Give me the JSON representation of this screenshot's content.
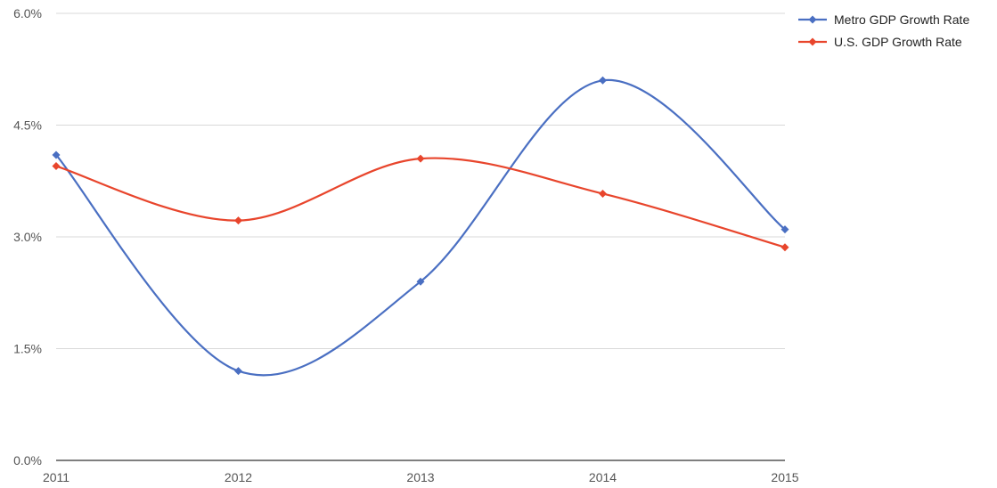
{
  "chart_data": {
    "type": "line",
    "categories": [
      "2011",
      "2012",
      "2013",
      "2014",
      "2015"
    ],
    "series": [
      {
        "name": "Metro GDP Growth Rate",
        "color": "#4a6fc2",
        "values": [
          4.1,
          1.2,
          2.4,
          5.1,
          3.1
        ]
      },
      {
        "name": "U.S. GDP Growth Rate",
        "color": "#e8452c",
        "values": [
          3.95,
          3.22,
          4.05,
          3.58,
          2.86
        ]
      }
    ],
    "yticks": [
      "0.0%",
      "1.5%",
      "3.0%",
      "4.5%",
      "6.0%"
    ],
    "ylim": [
      0,
      6
    ],
    "grid": true,
    "smooth": true,
    "legend_position": "top-right"
  }
}
